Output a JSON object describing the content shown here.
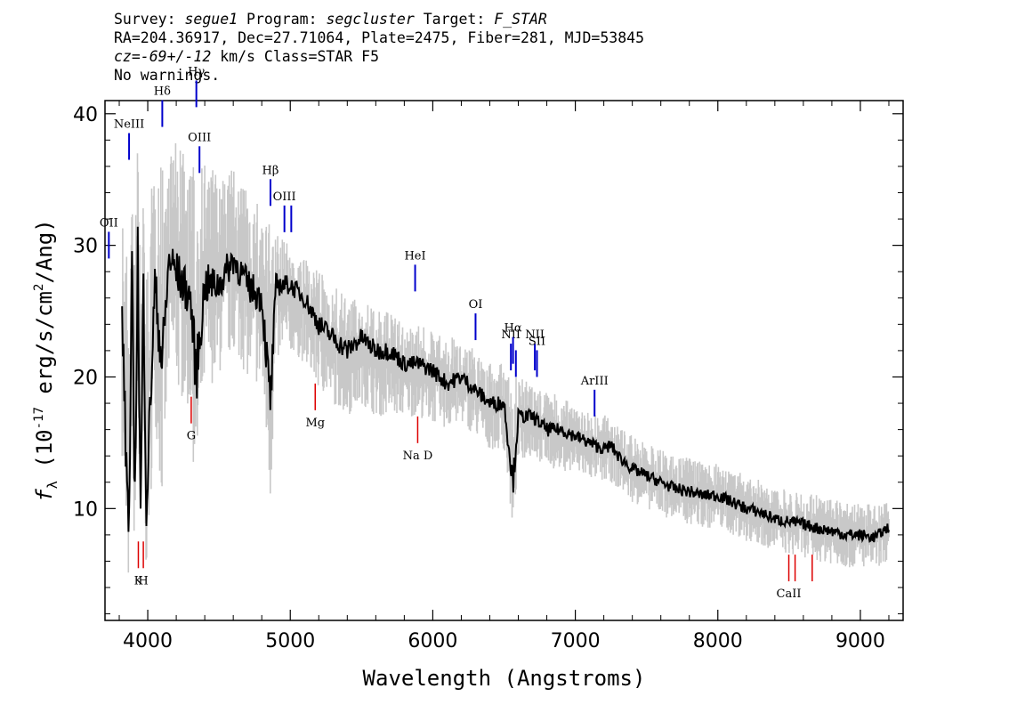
{
  "header": {
    "survey_label": "Survey:",
    "survey": "segue1",
    "program_label": "Program:",
    "program": "segcluster",
    "target_label": "Target:",
    "target": "F_STAR",
    "line2": "RA=204.36917, Dec=27.71064, Plate=2475, Fiber=281, MJD=53845",
    "cz_value": "cz=-69+/-12",
    "cz_rest": " km/s Class=STAR F5",
    "line4": "No warnings."
  },
  "chart_data": {
    "type": "line",
    "title": "",
    "xlabel": "Wavelength (Angstroms)",
    "ylabel": "f_λ (10^-17 erg/s/cm^2/Ang)",
    "xlim": [
      3700,
      9300
    ],
    "ylim": [
      1.5,
      41
    ],
    "x_ticks": [
      4000,
      5000,
      6000,
      7000,
      8000,
      9000
    ],
    "y_ticks": [
      10,
      20,
      30,
      40
    ],
    "grid": false,
    "legend": "none",
    "series": [
      {
        "role": "flux",
        "color": "#000000",
        "x": [
          3820,
          3850,
          3870,
          3890,
          3910,
          3930,
          3950,
          3970,
          3990,
          4050,
          4100,
          4150,
          4200,
          4300,
          4340,
          4400,
          4500,
          4600,
          4700,
          4800,
          4861,
          4900,
          5000,
          5100,
          5200,
          5300,
          5400,
          5500,
          5600,
          5700,
          5800,
          5900,
          6000,
          6100,
          6200,
          6300,
          6400,
          6500,
          6563,
          6600,
          6700,
          6800,
          6900,
          7000,
          7100,
          7200,
          7250,
          7300,
          7400,
          7500,
          7600,
          7700,
          7800,
          7900,
          8000,
          8100,
          8200,
          8300,
          8400,
          8500,
          8600,
          8700,
          8800,
          8900,
          9000,
          9100,
          9200
        ],
        "y": [
          25,
          13,
          9,
          28,
          10,
          30,
          9,
          27,
          10,
          27,
          21,
          29,
          28,
          26,
          20,
          27,
          27,
          29,
          27,
          26,
          18,
          27,
          27,
          26,
          24,
          23,
          22,
          23,
          22,
          22,
          21,
          21,
          20.5,
          19.5,
          20,
          19,
          18,
          18,
          12,
          17,
          17,
          16,
          16,
          15.5,
          15,
          14.5,
          14.8,
          14,
          13,
          12.5,
          12,
          11.5,
          11.3,
          11,
          11,
          10.5,
          10,
          9.7,
          9.2,
          9,
          8.8,
          8.5,
          8.3,
          8,
          8,
          7.8,
          8.6
        ]
      },
      {
        "role": "noise-envelope",
        "color": "#c8c8c8",
        "upper": [
          34,
          30,
          28,
          36,
          30,
          40,
          30,
          36,
          28,
          38,
          36,
          38,
          38,
          36,
          36,
          37,
          35,
          36,
          34,
          33,
          32,
          31,
          30,
          29,
          28,
          27,
          26,
          26,
          25,
          25,
          24,
          24,
          23.5,
          23,
          23,
          22,
          21,
          21,
          20,
          20,
          19.5,
          19,
          18.5,
          18,
          17.5,
          17,
          17.5,
          16.5,
          15.5,
          15,
          14.5,
          14,
          14,
          13.5,
          13.5,
          13,
          12.5,
          12.2,
          11.8,
          11.5,
          11.3,
          11,
          10.8,
          10.5,
          10.5,
          10.2,
          10.5
        ],
        "lower": [
          14,
          5,
          3,
          16,
          4,
          16,
          4,
          16,
          4,
          17,
          10,
          20,
          19,
          17,
          10,
          19,
          20,
          22,
          20,
          19,
          10,
          21,
          22,
          21,
          19,
          18,
          17,
          18,
          17,
          17,
          17,
          17,
          16.5,
          16,
          16.5,
          15.5,
          14.5,
          14.5,
          8,
          13.5,
          14,
          13,
          13,
          12.5,
          12.2,
          12,
          12,
          11.5,
          10.5,
          10,
          9.5,
          9,
          8.8,
          8.5,
          8.5,
          8,
          7.5,
          7.2,
          6.8,
          6.5,
          6.3,
          6,
          5.8,
          5.5,
          5.5,
          5.4,
          6
        ]
      }
    ],
    "emission_lines": [
      {
        "label": "OII",
        "wave": 3727,
        "y": 29
      },
      {
        "label": "NeIII",
        "wave": 3869,
        "y": 36.5
      },
      {
        "label": "Hδ",
        "wave": 4102,
        "y": 39
      },
      {
        "label": "Hγ",
        "wave": 4341,
        "y": 40.5
      },
      {
        "label": "OIII",
        "wave": 4363,
        "y": 35.5
      },
      {
        "label": "Hβ",
        "wave": 4861,
        "y": 33
      },
      {
        "label": "OIII",
        "wave": 4959,
        "y": 31
      },
      {
        "label": "",
        "wave": 5007,
        "y": 31
      },
      {
        "label": "HeI",
        "wave": 5876,
        "y": 26.5
      },
      {
        "label": "OI",
        "wave": 6300,
        "y": 22.8
      },
      {
        "label": "NII",
        "wave": 6548,
        "y": 20.5
      },
      {
        "label": "Hα",
        "wave": 6563,
        "y": 21
      },
      {
        "label": "",
        "wave": 6583,
        "y": 20
      },
      {
        "label": "NII",
        "wave": 6716,
        "y": 20.5
      },
      {
        "label": "SII",
        "wave": 6731,
        "y": 20
      },
      {
        "label": "ArIII",
        "wave": 7135,
        "y": 17
      }
    ],
    "absorption_lines": [
      {
        "label": "K",
        "wave": 3934,
        "y": 7.5
      },
      {
        "label": "H",
        "wave": 3969,
        "y": 7.5
      },
      {
        "label": "G",
        "wave": 4305,
        "y": 18.5
      },
      {
        "label": "Mg",
        "wave": 5175,
        "y": 19.5
      },
      {
        "label": "Na  D",
        "wave": 5894,
        "y": 17
      },
      {
        "label": "CaII",
        "wave": 8498,
        "y": 6.5
      },
      {
        "label": "",
        "wave": 8542,
        "y": 6.5
      },
      {
        "label": "",
        "wave": 8662,
        "y": 6.5
      }
    ],
    "colors": {
      "emission": "#0000cc",
      "absorption": "#dd0000",
      "noise": "#c8c8c8",
      "flux": "#000000"
    }
  }
}
